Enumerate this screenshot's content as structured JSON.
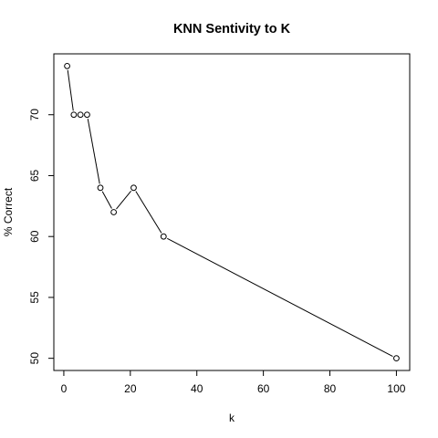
{
  "chart_data": {
    "type": "line",
    "title": "KNN Sentivity to K",
    "xlabel": "k",
    "ylabel": "% Correct",
    "xlim": [
      -3,
      104
    ],
    "ylim": [
      49,
      75
    ],
    "xticks": [
      0,
      20,
      40,
      60,
      80,
      100
    ],
    "yticks": [
      50,
      55,
      60,
      65,
      70
    ],
    "grid": false,
    "markers": "open-circle",
    "series": [
      {
        "x": [
          1,
          3,
          5,
          7,
          11,
          15,
          21,
          30,
          100
        ],
        "values": [
          74,
          70,
          70,
          70,
          64,
          62,
          64,
          60,
          50
        ]
      }
    ]
  }
}
